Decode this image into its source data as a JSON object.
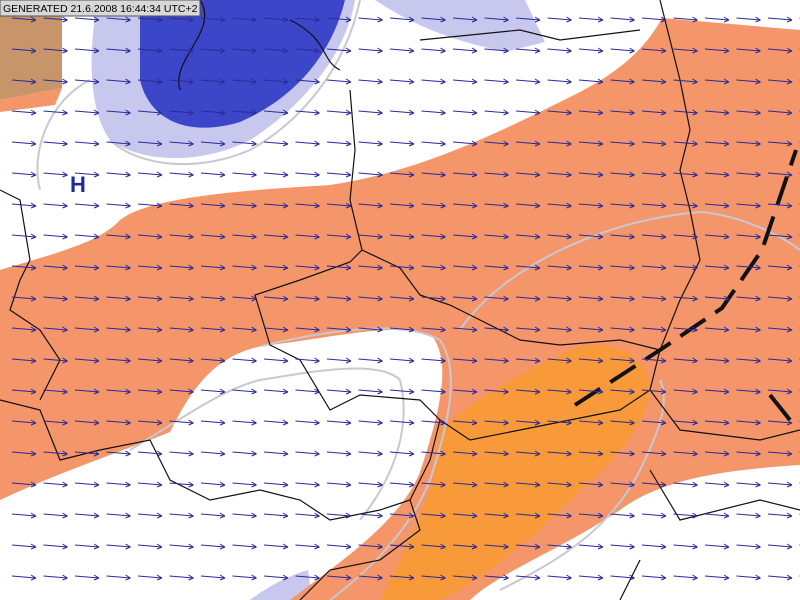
{
  "header": {
    "generated": "GENERATED 21.6.2008 16:44:34 UTC+2"
  },
  "labels": {
    "pressure_high": "H"
  }
}
